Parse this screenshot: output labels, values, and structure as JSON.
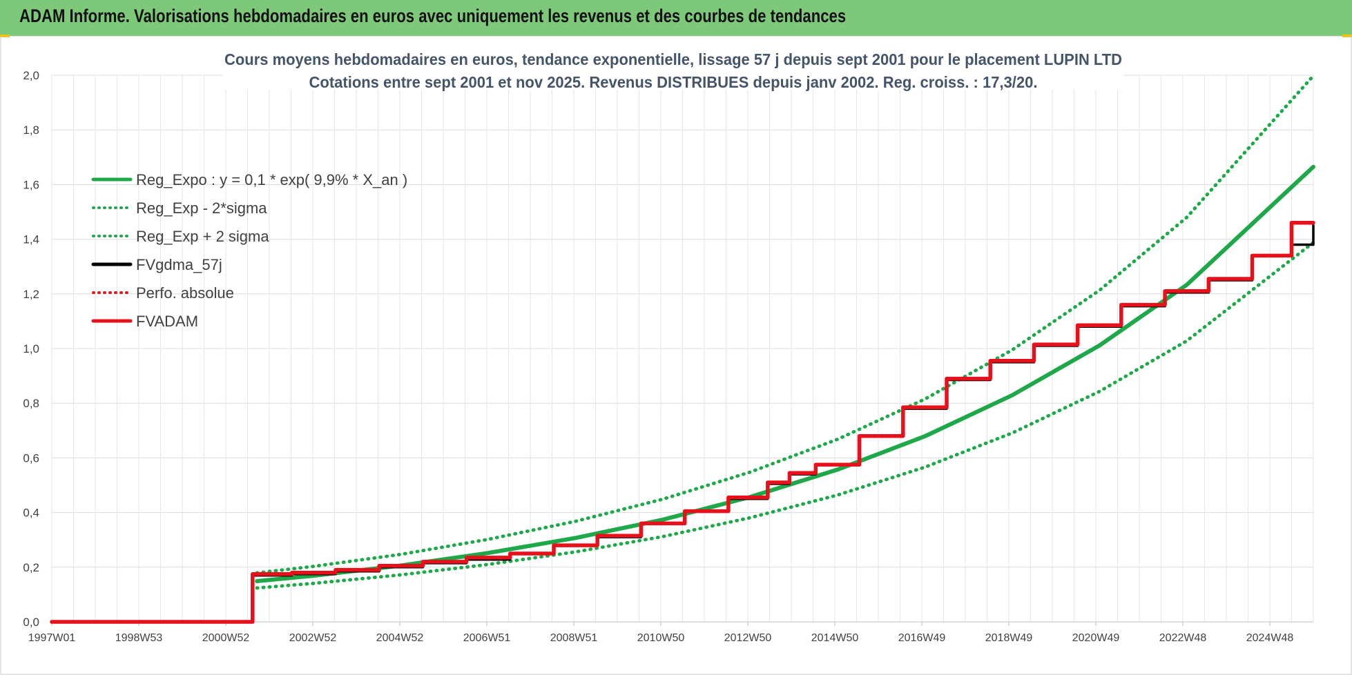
{
  "header": {
    "title": "ADAM Informe. Valorisations hebdomadaires en euros avec uniquement les revenus et des courbes de tendances"
  },
  "chart_data": {
    "type": "line",
    "title": "Cours moyens hebdomadaires en euros, tendance exponentielle, lissage 57 j depuis sept 2001 pour le placement LUPIN LTD",
    "subtitle": "Cotations entre sept 2001 et nov 2025. Revenus DISTRIBUES depuis janv 2002. Reg. croiss. : 17,3/20.",
    "xlabel": "",
    "ylabel": "",
    "x_ticks": [
      "1997W01",
      "1998W53",
      "2000W52",
      "2002W52",
      "2004W52",
      "2006W51",
      "2008W51",
      "2010W50",
      "2012W50",
      "2014W50",
      "2016W49",
      "2018W49",
      "2020W49",
      "2022W48",
      "2024W48"
    ],
    "y_ticks": [
      "0,0",
      "0,2",
      "0,4",
      "0,6",
      "0,8",
      "1,0",
      "1,2",
      "1,4",
      "1,6",
      "1,8",
      "2,0"
    ],
    "xlim": [
      1997.0,
      2025.9
    ],
    "ylim": [
      0,
      2.0
    ],
    "grid": true,
    "legend_position": "top-left",
    "series": [
      {
        "name": "Reg_Expo : y = 0,1 * exp( 9,9% *  X_an )",
        "color": "#1fa84a",
        "style": "solid",
        "points": [
          [
            2001.7,
            0.149
          ],
          [
            2003,
            0.169
          ],
          [
            2005,
            0.206
          ],
          [
            2007,
            0.252
          ],
          [
            2009,
            0.307
          ],
          [
            2011,
            0.374
          ],
          [
            2013,
            0.457
          ],
          [
            2015,
            0.557
          ],
          [
            2017,
            0.679
          ],
          [
            2019,
            0.829
          ],
          [
            2021,
            1.011
          ],
          [
            2023,
            1.233
          ],
          [
            2025.9,
            1.665
          ]
        ]
      },
      {
        "name": "Reg_Exp - 2*sigma",
        "color": "#1fa84a",
        "style": "dotted",
        "points": [
          [
            2001.7,
            0.124
          ],
          [
            2003,
            0.141
          ],
          [
            2005,
            0.172
          ],
          [
            2007,
            0.21
          ],
          [
            2009,
            0.256
          ],
          [
            2011,
            0.312
          ],
          [
            2013,
            0.381
          ],
          [
            2015,
            0.464
          ],
          [
            2017,
            0.566
          ],
          [
            2019,
            0.691
          ],
          [
            2021,
            0.843
          ],
          [
            2023,
            1.028
          ],
          [
            2025.9,
            1.388
          ]
        ]
      },
      {
        "name": "Reg_Exp + 2 sigma",
        "color": "#1fa84a",
        "style": "dotted",
        "points": [
          [
            2001.7,
            0.179
          ],
          [
            2003,
            0.203
          ],
          [
            2005,
            0.247
          ],
          [
            2007,
            0.302
          ],
          [
            2009,
            0.368
          ],
          [
            2011,
            0.449
          ],
          [
            2013,
            0.548
          ],
          [
            2015,
            0.668
          ],
          [
            2017,
            0.815
          ],
          [
            2019,
            0.995
          ],
          [
            2021,
            1.213
          ],
          [
            2023,
            1.48
          ],
          [
            2025.9,
            1.998
          ]
        ]
      },
      {
        "name": "FVgdma_57j",
        "color": "#000000",
        "style": "solid",
        "points": [
          [
            1997.0,
            0
          ],
          [
            2001.6,
            0
          ],
          [
            2001.6,
            0.17
          ],
          [
            2002.5,
            0.175
          ],
          [
            2003.5,
            0.185
          ],
          [
            2004.5,
            0.2
          ],
          [
            2005.5,
            0.215
          ],
          [
            2006.5,
            0.228
          ],
          [
            2007.5,
            0.248
          ],
          [
            2008.5,
            0.28
          ],
          [
            2009.5,
            0.31
          ],
          [
            2010.5,
            0.36
          ],
          [
            2011.5,
            0.405
          ],
          [
            2012.5,
            0.45
          ],
          [
            2013.4,
            0.505
          ],
          [
            2013.9,
            0.54
          ],
          [
            2014.5,
            0.575
          ],
          [
            2015.5,
            0.68
          ],
          [
            2016.5,
            0.78
          ],
          [
            2017.5,
            0.885
          ],
          [
            2018.5,
            0.95
          ],
          [
            2019.5,
            1.01
          ],
          [
            2020.5,
            1.08
          ],
          [
            2021.5,
            1.155
          ],
          [
            2022.5,
            1.205
          ],
          [
            2023.5,
            1.25
          ],
          [
            2024.5,
            1.34
          ],
          [
            2025.4,
            1.38
          ],
          [
            2025.9,
            1.45
          ]
        ]
      },
      {
        "name": "Perfo. absolue",
        "color": "#e8111b",
        "style": "dotted",
        "points": []
      },
      {
        "name": "FVADAM",
        "color": "#e8111b",
        "style": "solid",
        "points": [
          [
            1997.0,
            0
          ],
          [
            2001.6,
            0
          ],
          [
            2001.6,
            0.175
          ],
          [
            2002.5,
            0.18
          ],
          [
            2003.5,
            0.19
          ],
          [
            2004.5,
            0.205
          ],
          [
            2005.5,
            0.22
          ],
          [
            2006.5,
            0.235
          ],
          [
            2007.5,
            0.25
          ],
          [
            2008.5,
            0.28
          ],
          [
            2009.5,
            0.315
          ],
          [
            2010.5,
            0.36
          ],
          [
            2011.5,
            0.405
          ],
          [
            2012.5,
            0.455
          ],
          [
            2013.4,
            0.51
          ],
          [
            2013.9,
            0.545
          ],
          [
            2014.5,
            0.575
          ],
          [
            2015.5,
            0.68
          ],
          [
            2016.5,
            0.785
          ],
          [
            2017.5,
            0.89
          ],
          [
            2018.5,
            0.955
          ],
          [
            2019.5,
            1.015
          ],
          [
            2020.5,
            1.085
          ],
          [
            2021.5,
            1.16
          ],
          [
            2022.5,
            1.21
          ],
          [
            2023.5,
            1.255
          ],
          [
            2024.5,
            1.34
          ],
          [
            2025.4,
            1.46
          ],
          [
            2025.9,
            1.46
          ]
        ]
      }
    ]
  }
}
